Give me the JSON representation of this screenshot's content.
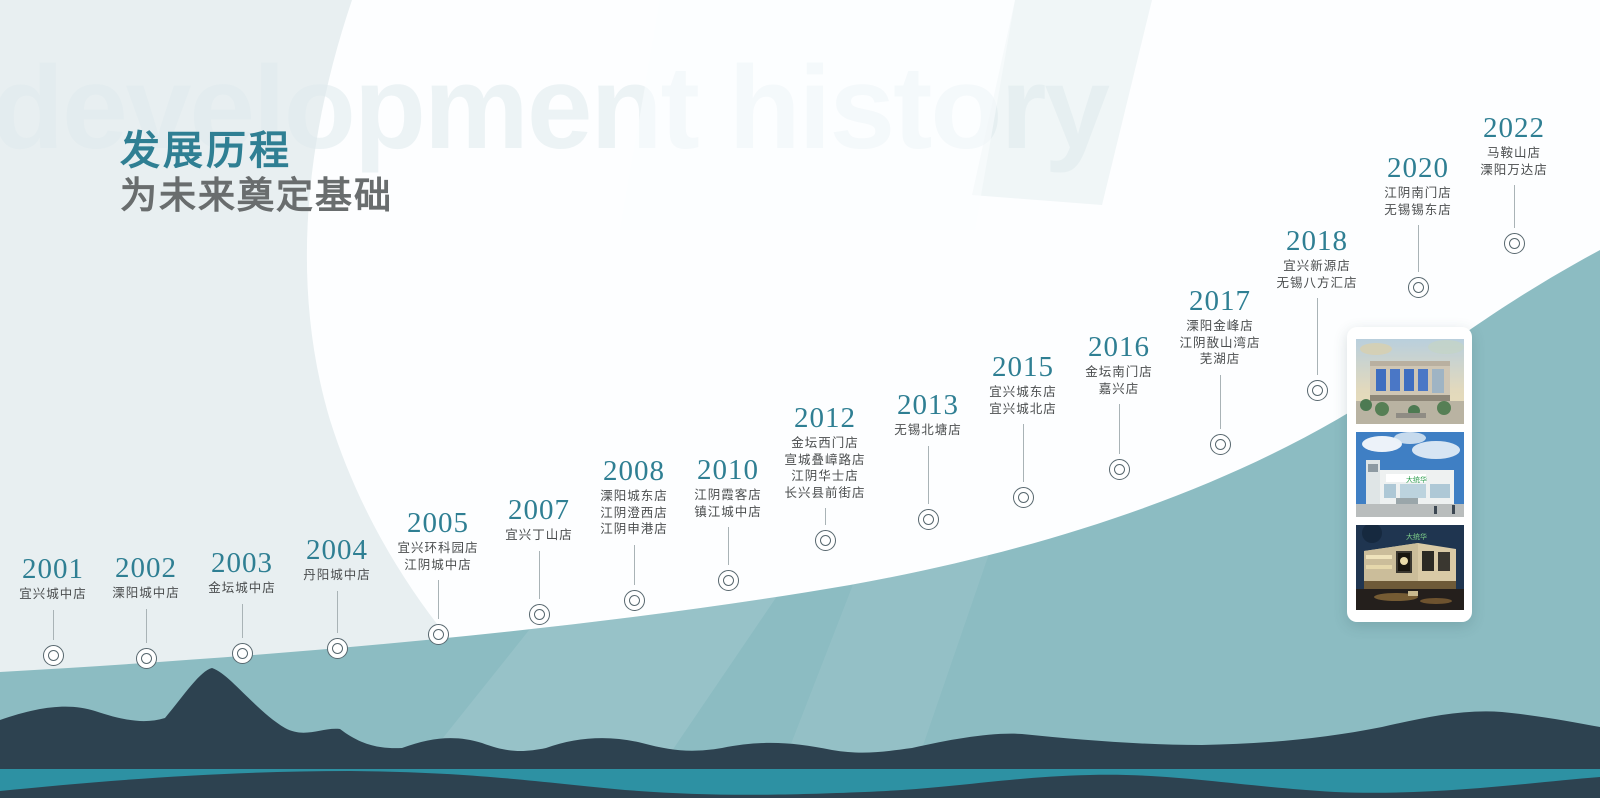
{
  "header": {
    "heading": "发展历程",
    "subheading": "为未来奠定基础"
  },
  "watermark": "development history",
  "timeline": [
    {
      "year": "2001",
      "stores": [
        "宜兴城中店"
      ]
    },
    {
      "year": "2002",
      "stores": [
        "溧阳城中店"
      ]
    },
    {
      "year": "2003",
      "stores": [
        "金坛城中店"
      ]
    },
    {
      "year": "2004",
      "stores": [
        "丹阳城中店"
      ]
    },
    {
      "year": "2005",
      "stores": [
        "宜兴环科园店",
        "江阴城中店"
      ]
    },
    {
      "year": "2007",
      "stores": [
        "宜兴丁山店"
      ]
    },
    {
      "year": "2008",
      "stores": [
        "溧阳城东店",
        "江阴澄西店",
        "江阴申港店"
      ]
    },
    {
      "year": "2010",
      "stores": [
        "江阴霞客店",
        "镇江城中店"
      ]
    },
    {
      "year": "2012",
      "stores": [
        "金坛西门店",
        "宣城叠嶂路店",
        "江阴华士店",
        "长兴县前街店"
      ]
    },
    {
      "year": "2013",
      "stores": [
        "无锡北塘店"
      ]
    },
    {
      "year": "2015",
      "stores": [
        "宜兴城东店",
        "宜兴城北店"
      ]
    },
    {
      "year": "2016",
      "stores": [
        "金坛南门店",
        "嘉兴店"
      ]
    },
    {
      "year": "2017",
      "stores": [
        "溧阳金峰店",
        "江阴敔山湾店",
        "芜湖店"
      ]
    },
    {
      "year": "2018",
      "stores": [
        "宜兴新源店",
        "无锡八方汇店"
      ]
    },
    {
      "year": "2020",
      "stores": [
        "江阴南门店",
        "无锡锡东店"
      ]
    },
    {
      "year": "2022",
      "stores": [
        "马鞍山店",
        "溧阳万达店"
      ]
    }
  ],
  "gallery": {
    "photos": [
      "mall-daytime-aerial-photo",
      "mall-blue-sky-green-sign-photo",
      "mall-night-view-photo"
    ]
  },
  "colors": {
    "accent_teal": "#2f7f93",
    "light_swoosh_teal": "#8cbcc2",
    "dark_navy": "#2d4250",
    "bottom_band_teal": "#2d91a3",
    "left_panel_gray": "#e8eff1"
  }
}
